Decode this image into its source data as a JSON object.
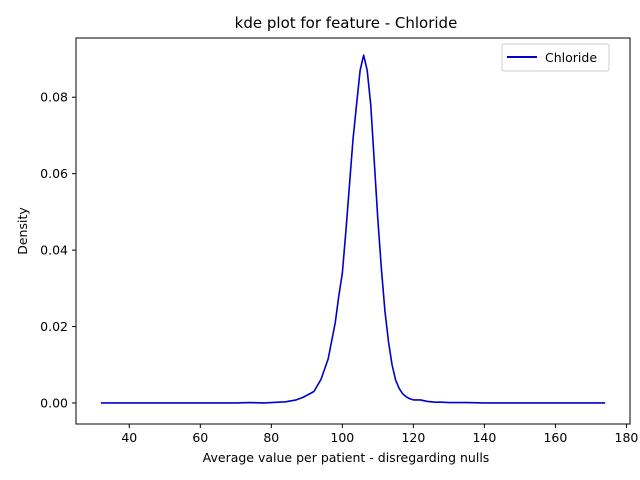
{
  "chart_data": {
    "type": "line",
    "title": "kde plot for feature -  Chloride",
    "xlabel": "Average value per patient - disregarding nulls",
    "ylabel": "Density",
    "xlim": [
      25,
      181
    ],
    "ylim": [
      -0.0055,
      0.0955
    ],
    "xticks": [
      40,
      60,
      80,
      100,
      120,
      140,
      160,
      180
    ],
    "xtick_labels": [
      "40",
      "60",
      "80",
      "100",
      "120",
      "140",
      "160",
      "180"
    ],
    "yticks": [
      0.0,
      0.02,
      0.04,
      0.06,
      0.08
    ],
    "ytick_labels": [
      "0.00",
      "0.02",
      "0.04",
      "0.06",
      "0.08"
    ],
    "grid": false,
    "legend": {
      "position": "top-right"
    },
    "series": [
      {
        "name": "Chloride",
        "color": "#0000cd",
        "x": [
          32,
          50,
          70,
          74,
          78,
          80,
          84,
          87,
          89,
          92,
          94,
          96,
          98,
          99,
          100,
          101,
          102,
          103,
          104,
          105,
          106,
          107,
          108,
          109,
          110,
          111,
          112,
          113,
          114,
          115,
          116,
          117,
          118,
          119,
          120,
          121,
          122,
          123,
          124,
          126,
          128,
          130,
          135,
          140,
          150,
          160,
          174
        ],
        "y": [
          0.0,
          0.0,
          0.0,
          0.0001,
          0.0,
          0.0001,
          0.0003,
          0.0008,
          0.0015,
          0.003,
          0.0062,
          0.0115,
          0.021,
          0.028,
          0.034,
          0.045,
          0.057,
          0.069,
          0.078,
          0.087,
          0.091,
          0.087,
          0.078,
          0.063,
          0.048,
          0.035,
          0.024,
          0.016,
          0.01,
          0.006,
          0.0038,
          0.0024,
          0.0016,
          0.0011,
          0.0008,
          0.0008,
          0.0008,
          0.0006,
          0.0004,
          0.0002,
          0.0002,
          0.0001,
          0.0001,
          0.0,
          0.0,
          0.0,
          0.0
        ]
      }
    ]
  }
}
